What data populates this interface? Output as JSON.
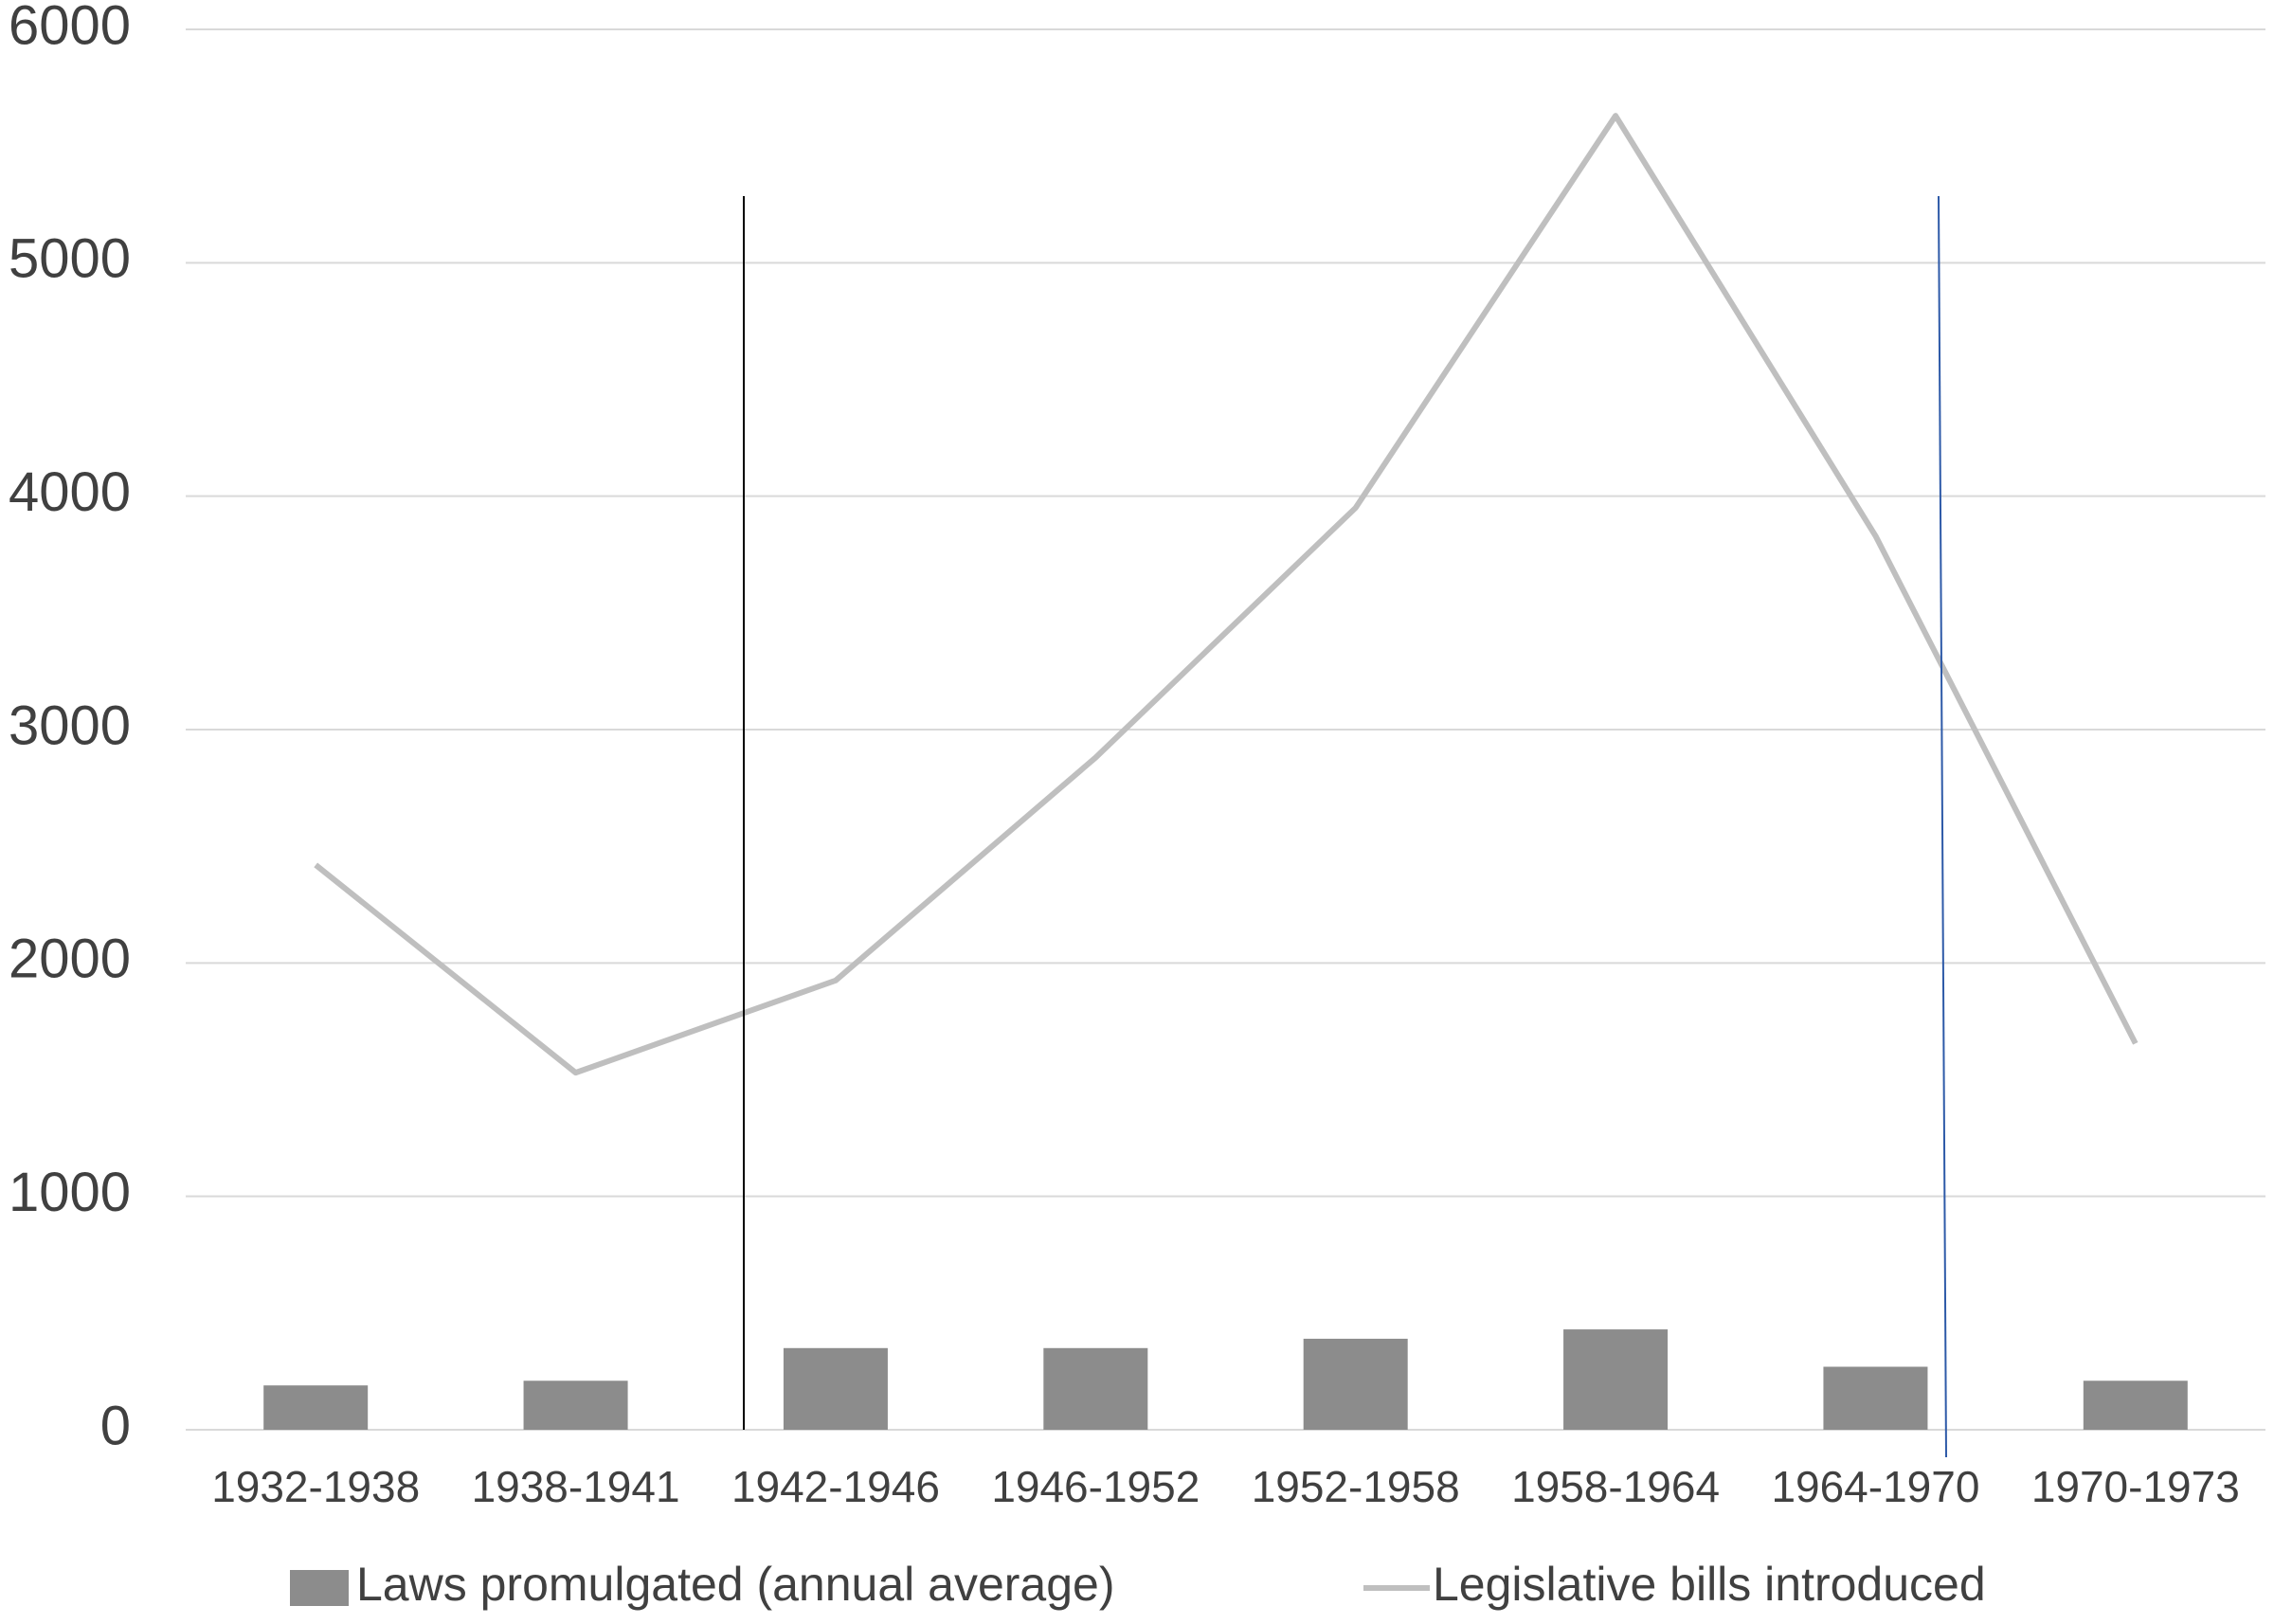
{
  "chart_data": {
    "type": "combo",
    "categories": [
      "1932-1938",
      "1938-1941",
      "1942-1946",
      "1946-1952",
      "1952-1958",
      "1958-1964",
      "1964-1970",
      "1970-1973"
    ],
    "series": [
      {
        "name": "Laws promulgated (annual average)",
        "type": "bar",
        "color": "#8c8c8c",
        "values": [
          190,
          210,
          350,
          350,
          390,
          430,
          270,
          210
        ]
      },
      {
        "name": "Legislative bills introduced",
        "type": "line",
        "color": "#bfbfbf",
        "values": [
          2420,
          1530,
          1925,
          2880,
          3950,
          5630,
          3830,
          1655
        ]
      }
    ],
    "ylim": [
      0,
      6000
    ],
    "yticks": [
      0,
      1000,
      2000,
      3000,
      4000,
      5000,
      6000
    ],
    "grid": true,
    "legend": "bottom"
  }
}
